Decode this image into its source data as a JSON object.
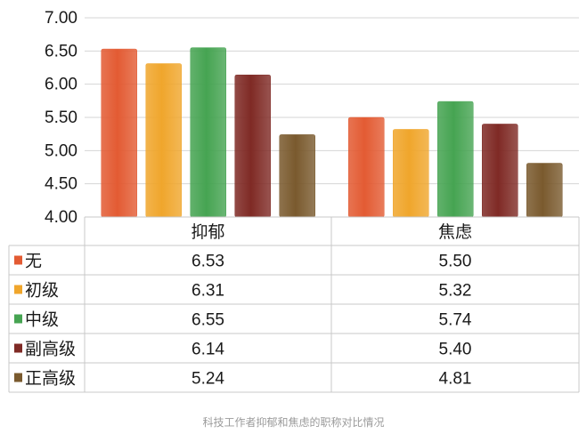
{
  "chart_data": {
    "type": "bar",
    "categories": [
      "抑郁",
      "焦虑"
    ],
    "series": [
      {
        "name": "无",
        "values": [
          6.53,
          5.5
        ]
      },
      {
        "name": "初级",
        "values": [
          6.31,
          5.32
        ]
      },
      {
        "name": "中级",
        "values": [
          6.55,
          5.74
        ]
      },
      {
        "name": "副高级",
        "values": [
          6.14,
          5.4
        ]
      },
      {
        "name": "正高级",
        "values": [
          5.24,
          4.81
        ]
      }
    ],
    "table_values": [
      [
        "6.53",
        "5.50"
      ],
      [
        "6.31",
        "5.32"
      ],
      [
        "6.55",
        "5.74"
      ],
      [
        "6.14",
        "5.40"
      ],
      [
        "5.24",
        "4.81"
      ]
    ],
    "ylim": [
      4.0,
      7.0
    ],
    "yticks": [
      "4.00",
      "4.50",
      "5.00",
      "5.50",
      "6.00",
      "6.50",
      "7.00"
    ],
    "grid": true,
    "legend": "data-table",
    "colors": [
      "#e35b33",
      "#f0a62c",
      "#46a452",
      "#7f2a25",
      "#7a5a2e"
    ]
  },
  "caption": "科技工作者抑郁和焦虑的职称对比情况"
}
